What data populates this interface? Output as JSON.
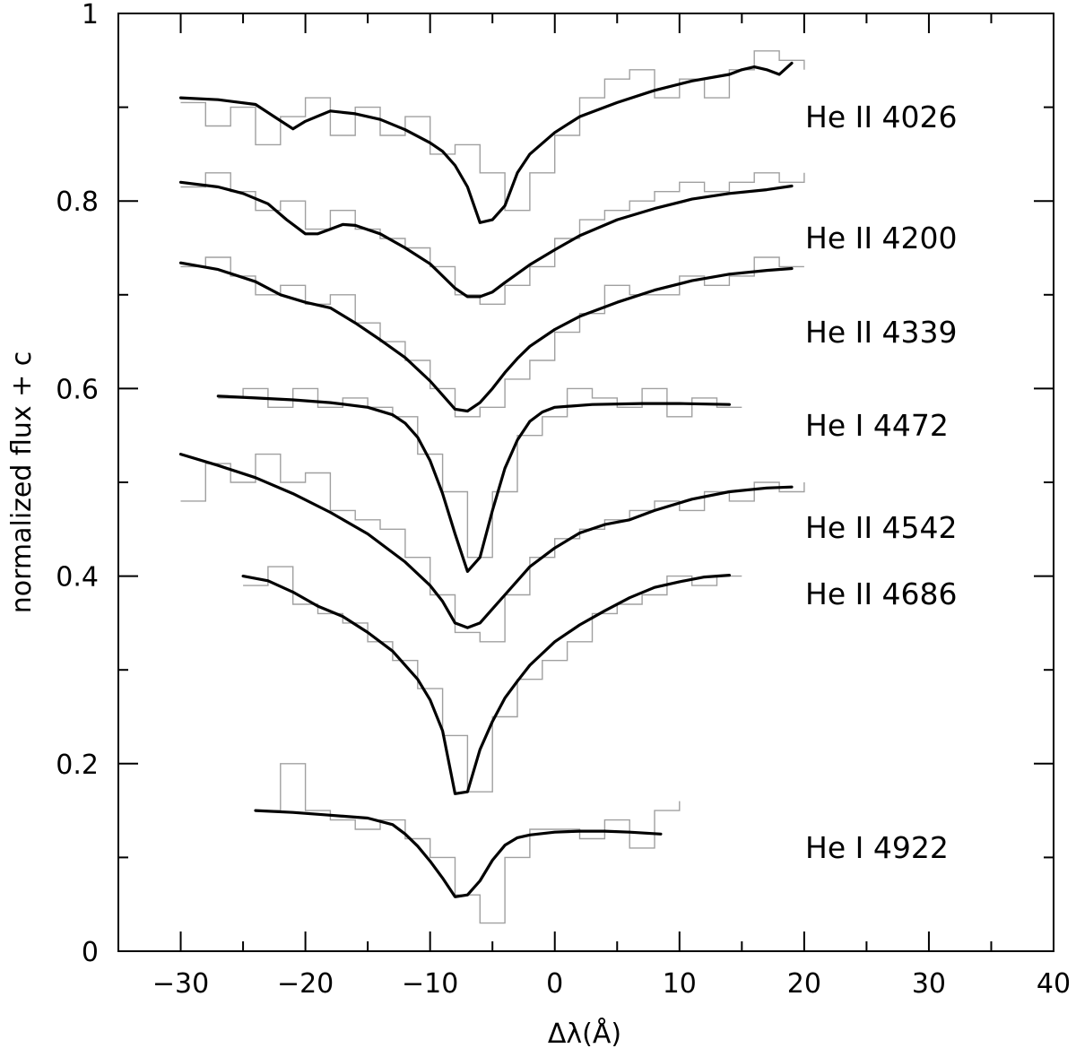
{
  "chart_data": {
    "type": "line",
    "xlabel": "Δλ(Å)",
    "ylabel": "normalized flux + c",
    "xlim": [
      -35,
      40
    ],
    "ylim": [
      0,
      1
    ],
    "x_ticks": [
      -30,
      -20,
      -10,
      0,
      10,
      20,
      30,
      40
    ],
    "x_tick_labels": [
      "−30",
      "−20",
      "−10",
      "0",
      "10",
      "20",
      "30",
      "40"
    ],
    "y_ticks": [
      0,
      0.2,
      0.4,
      0.6,
      0.8,
      1
    ],
    "y_tick_labels": [
      "0",
      "0.2",
      "0.4",
      "0.6",
      "0.8",
      "1"
    ],
    "colors": {
      "model": "#000000",
      "observed": "#a0a0a0"
    },
    "series": [
      {
        "name": "He II 4026",
        "model": {
          "x": [
            -30,
            -27,
            -24,
            -22.5,
            -21,
            -20,
            -18,
            -16,
            -14,
            -12,
            -10,
            -9,
            -8,
            -7,
            -6,
            -5,
            -4,
            -3,
            -2,
            0,
            2,
            5,
            8,
            11,
            14,
            15,
            16,
            17,
            18,
            19
          ],
          "y": [
            0.91,
            0.908,
            0.903,
            0.89,
            0.877,
            0.885,
            0.896,
            0.893,
            0.887,
            0.876,
            0.862,
            0.853,
            0.838,
            0.815,
            0.777,
            0.78,
            0.795,
            0.83,
            0.85,
            0.873,
            0.89,
            0.905,
            0.918,
            0.928,
            0.935,
            0.94,
            0.943,
            0.94,
            0.935,
            0.947
          ]
        },
        "observed": {
          "edges": [
            -30,
            -28,
            -26,
            -24,
            -22,
            -20,
            -18,
            -16,
            -14,
            -12,
            -10,
            -8,
            -6,
            -4,
            -2,
            0,
            2,
            4,
            6,
            8,
            10,
            12,
            14,
            16,
            18,
            20
          ],
          "values": [
            0.905,
            0.88,
            0.9,
            0.86,
            0.89,
            0.91,
            0.87,
            0.9,
            0.87,
            0.89,
            0.85,
            0.86,
            0.83,
            0.79,
            0.83,
            0.87,
            0.91,
            0.93,
            0.94,
            0.91,
            0.93,
            0.91,
            0.94,
            0.96,
            0.95,
            0.94
          ]
        }
      },
      {
        "name": "He II 4200",
        "model": {
          "x": [
            -30,
            -27,
            -25,
            -23,
            -21.5,
            -20,
            -19,
            -18,
            -17,
            -16,
            -14,
            -12,
            -10,
            -9,
            -8,
            -7,
            -6,
            -5,
            -4,
            -2,
            0,
            2,
            5,
            8,
            11,
            14,
            17,
            19
          ],
          "y": [
            0.82,
            0.815,
            0.808,
            0.797,
            0.78,
            0.765,
            0.765,
            0.77,
            0.775,
            0.774,
            0.765,
            0.75,
            0.733,
            0.72,
            0.707,
            0.698,
            0.698,
            0.703,
            0.713,
            0.732,
            0.748,
            0.763,
            0.78,
            0.792,
            0.802,
            0.808,
            0.812,
            0.816
          ]
        },
        "observed": {
          "edges": [
            -30,
            -28,
            -26,
            -24,
            -22,
            -20,
            -18,
            -16,
            -14,
            -12,
            -10,
            -8,
            -6,
            -4,
            -2,
            0,
            2,
            4,
            6,
            8,
            10,
            12,
            14,
            16,
            18,
            20
          ],
          "values": [
            0.815,
            0.83,
            0.81,
            0.79,
            0.8,
            0.77,
            0.79,
            0.77,
            0.76,
            0.75,
            0.73,
            0.7,
            0.69,
            0.71,
            0.73,
            0.76,
            0.78,
            0.79,
            0.8,
            0.81,
            0.82,
            0.81,
            0.82,
            0.83,
            0.82,
            0.83
          ]
        }
      },
      {
        "name": "He II 4339",
        "model": {
          "x": [
            -30,
            -27,
            -24,
            -22,
            -20,
            -18,
            -16,
            -14,
            -12,
            -10,
            -9,
            -8,
            -7,
            -6,
            -5,
            -4,
            -3,
            -2,
            0,
            2,
            5,
            8,
            11,
            14,
            17,
            19
          ],
          "y": [
            0.734,
            0.727,
            0.714,
            0.7,
            0.692,
            0.686,
            0.67,
            0.652,
            0.633,
            0.608,
            0.593,
            0.578,
            0.576,
            0.585,
            0.6,
            0.617,
            0.632,
            0.645,
            0.663,
            0.677,
            0.692,
            0.705,
            0.715,
            0.722,
            0.726,
            0.728
          ]
        },
        "observed": {
          "edges": [
            -30,
            -28,
            -26,
            -24,
            -22,
            -20,
            -18,
            -16,
            -14,
            -12,
            -10,
            -8,
            -6,
            -4,
            -2,
            0,
            2,
            4,
            6,
            8,
            10,
            12,
            14,
            16,
            18,
            20
          ],
          "values": [
            0.73,
            0.74,
            0.72,
            0.7,
            0.71,
            0.69,
            0.7,
            0.67,
            0.65,
            0.63,
            0.6,
            0.57,
            0.58,
            0.61,
            0.63,
            0.66,
            0.68,
            0.71,
            0.7,
            0.7,
            0.72,
            0.71,
            0.72,
            0.74,
            0.73,
            0.73
          ]
        }
      },
      {
        "name": "He I 4472",
        "model": {
          "x": [
            -27,
            -24,
            -21,
            -18,
            -15,
            -13,
            -12,
            -11,
            -10,
            -9,
            -8,
            -7,
            -6,
            -5,
            -4,
            -3,
            -2,
            -1,
            0,
            3,
            7,
            10,
            14
          ],
          "y": [
            0.592,
            0.59,
            0.588,
            0.585,
            0.58,
            0.572,
            0.563,
            0.548,
            0.523,
            0.488,
            0.445,
            0.405,
            0.42,
            0.47,
            0.515,
            0.545,
            0.565,
            0.575,
            0.58,
            0.583,
            0.584,
            0.584,
            0.583
          ]
        },
        "observed": {
          "edges": [
            -27,
            -25,
            -23,
            -21,
            -19,
            -17,
            -15,
            -13,
            -11,
            -9,
            -7,
            -5,
            -3,
            -1,
            1,
            3,
            5,
            7,
            9,
            11,
            13,
            15
          ],
          "values": [
            0.59,
            0.6,
            0.58,
            0.6,
            0.58,
            0.59,
            0.58,
            0.57,
            0.53,
            0.49,
            0.42,
            0.49,
            0.55,
            0.57,
            0.6,
            0.59,
            0.58,
            0.6,
            0.57,
            0.59,
            0.58,
            0.58
          ]
        }
      },
      {
        "name": "He II 4542",
        "model": {
          "x": [
            -30,
            -27,
            -24,
            -21,
            -18,
            -15,
            -12,
            -10,
            -9,
            -8,
            -7,
            -6,
            -5,
            -4,
            -3,
            -2,
            0,
            2,
            4,
            6,
            8,
            11,
            14,
            17,
            19
          ],
          "y": [
            0.53,
            0.518,
            0.505,
            0.488,
            0.468,
            0.445,
            0.415,
            0.39,
            0.373,
            0.35,
            0.345,
            0.35,
            0.365,
            0.38,
            0.395,
            0.41,
            0.43,
            0.446,
            0.455,
            0.46,
            0.47,
            0.482,
            0.49,
            0.494,
            0.495
          ]
        },
        "observed": {
          "edges": [
            -30,
            -28,
            -26,
            -24,
            -22,
            -20,
            -18,
            -16,
            -14,
            -12,
            -10,
            -8,
            -6,
            -4,
            -2,
            0,
            2,
            4,
            6,
            8,
            10,
            12,
            14,
            16,
            18,
            20
          ],
          "values": [
            0.48,
            0.52,
            0.5,
            0.53,
            0.5,
            0.51,
            0.47,
            0.46,
            0.45,
            0.42,
            0.38,
            0.34,
            0.33,
            0.38,
            0.42,
            0.44,
            0.45,
            0.46,
            0.47,
            0.48,
            0.47,
            0.49,
            0.48,
            0.5,
            0.49,
            0.5
          ]
        }
      },
      {
        "name": "He II 4686",
        "model": {
          "x": [
            -25,
            -23,
            -21,
            -19,
            -17,
            -15,
            -13,
            -11,
            -10,
            -9,
            -8,
            -7,
            -6,
            -5,
            -4,
            -3,
            -2,
            0,
            2,
            4,
            6,
            8,
            10,
            12,
            14
          ],
          "y": [
            0.4,
            0.395,
            0.383,
            0.368,
            0.357,
            0.34,
            0.32,
            0.29,
            0.268,
            0.235,
            0.168,
            0.17,
            0.215,
            0.245,
            0.27,
            0.288,
            0.305,
            0.33,
            0.348,
            0.363,
            0.377,
            0.388,
            0.394,
            0.399,
            0.401
          ]
        },
        "observed": {
          "edges": [
            -25,
            -23,
            -21,
            -19,
            -17,
            -15,
            -13,
            -11,
            -9,
            -7,
            -5,
            -3,
            -1,
            1,
            3,
            5,
            7,
            9,
            11,
            13,
            15
          ],
          "values": [
            0.39,
            0.41,
            0.37,
            0.36,
            0.35,
            0.33,
            0.31,
            0.28,
            0.23,
            0.17,
            0.25,
            0.29,
            0.31,
            0.33,
            0.36,
            0.37,
            0.38,
            0.4,
            0.39,
            0.4,
            0.4
          ]
        }
      },
      {
        "name": "He I 4922",
        "model": {
          "x": [
            -24,
            -21,
            -18,
            -15,
            -13,
            -12,
            -11,
            -10,
            -9,
            -8,
            -7,
            -6,
            -5,
            -4,
            -3,
            -2,
            0,
            2,
            4,
            6,
            8.5
          ],
          "y": [
            0.15,
            0.148,
            0.145,
            0.142,
            0.135,
            0.125,
            0.112,
            0.096,
            0.078,
            0.058,
            0.06,
            0.075,
            0.097,
            0.113,
            0.121,
            0.124,
            0.127,
            0.128,
            0.128,
            0.127,
            0.125
          ]
        },
        "observed": {
          "edges": [
            -24,
            -22,
            -20,
            -18,
            -16,
            -14,
            -12,
            -10,
            -8,
            -6,
            -4,
            -2,
            0,
            2,
            4,
            6,
            8,
            10
          ],
          "values": [
            0.15,
            0.2,
            0.15,
            0.14,
            0.13,
            0.14,
            0.12,
            0.1,
            0.06,
            0.03,
            0.1,
            0.13,
            0.13,
            0.12,
            0.14,
            0.11,
            0.15,
            0.16
          ]
        }
      }
    ]
  }
}
